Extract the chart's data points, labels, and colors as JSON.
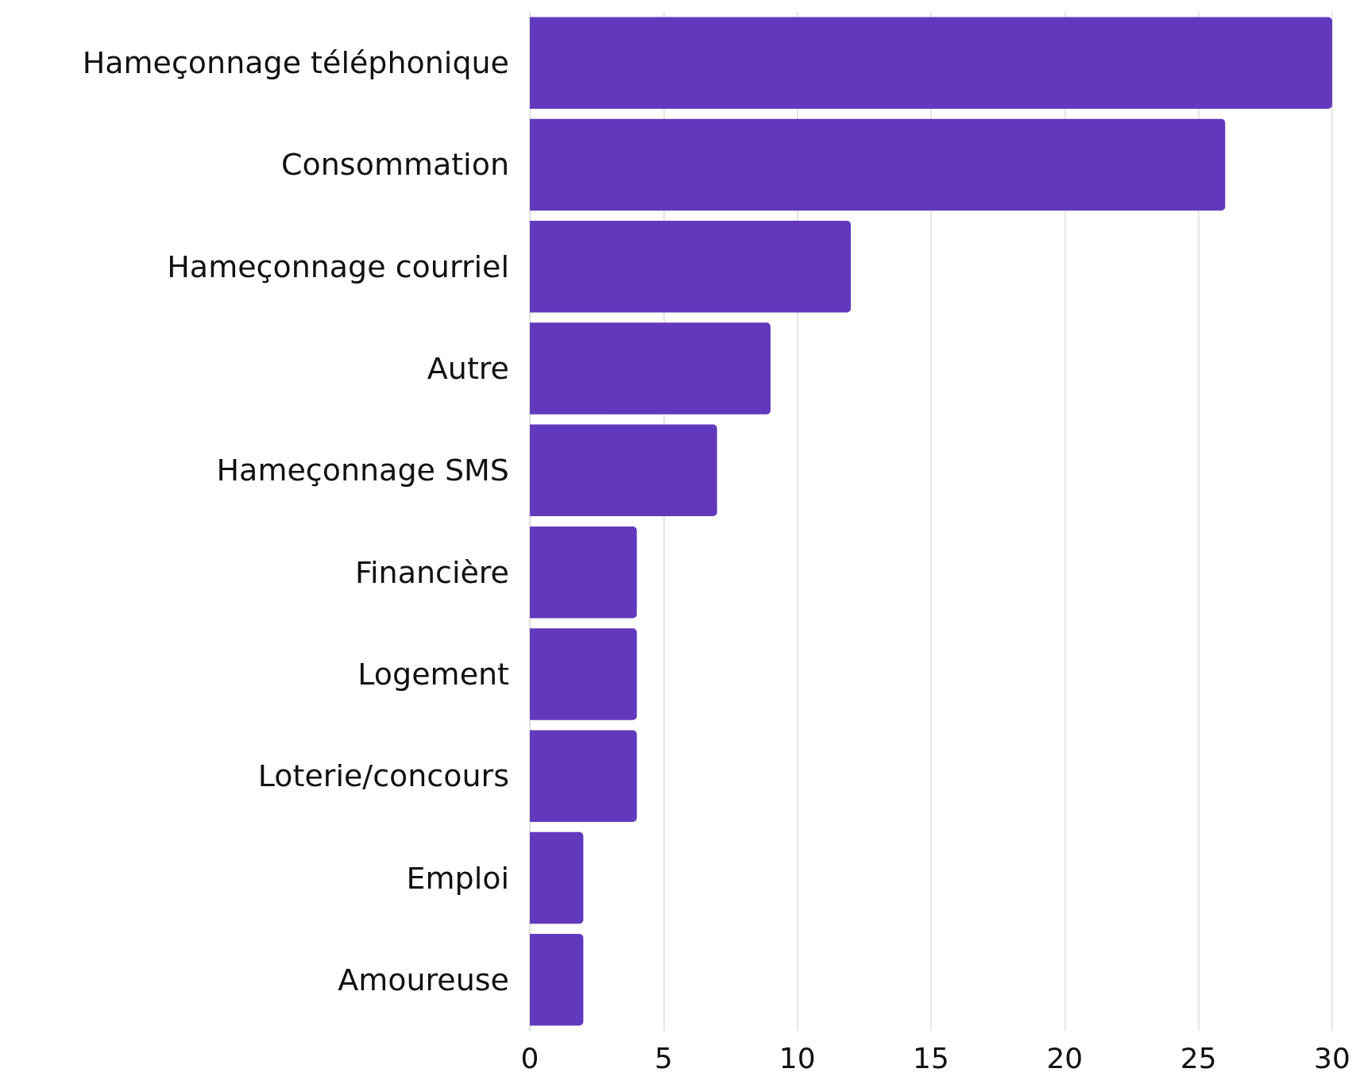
{
  "chart_data": {
    "type": "bar",
    "orientation": "horizontal",
    "categories": [
      "Hameçonnage téléphonique",
      "Consommation",
      "Hameçonnage courriel",
      "Autre",
      "Hameçonnage SMS",
      "Financière",
      "Logement",
      "Loterie/concours",
      "Emploi",
      "Amoureuse"
    ],
    "values": [
      30,
      26,
      12,
      9,
      7,
      4,
      4,
      4,
      2,
      2
    ],
    "color": "#6239bd",
    "xlim": [
      0,
      30
    ],
    "xticks": [
      0,
      5,
      10,
      15,
      20,
      25,
      30
    ],
    "grid": "x"
  }
}
